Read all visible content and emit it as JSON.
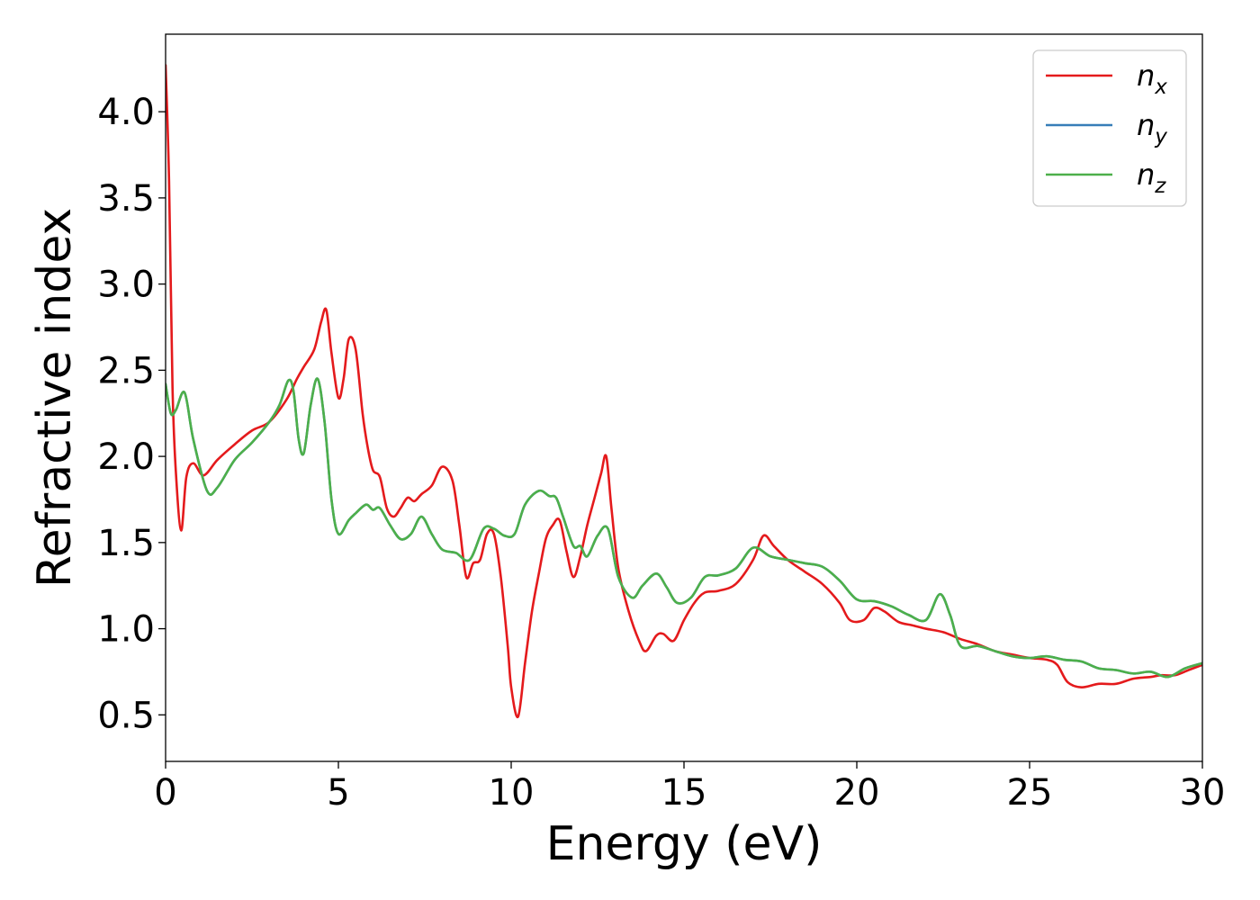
{
  "chart_data": {
    "type": "line",
    "title": "",
    "xlabel": "Energy (eV)",
    "ylabel": "Refractive index",
    "xlim": [
      0,
      30
    ],
    "ylim": [
      0.23,
      4.45
    ],
    "xticks": [
      0,
      5,
      10,
      15,
      20,
      25,
      30
    ],
    "xtick_labels": [
      "0",
      "5",
      "10",
      "15",
      "20",
      "25",
      "30"
    ],
    "yticks": [
      0.5,
      1.0,
      1.5,
      2.0,
      2.5,
      3.0,
      3.5,
      4.0
    ],
    "ytick_labels": [
      "0.5",
      "1.0",
      "1.5",
      "2.0",
      "2.5",
      "3.0",
      "3.5",
      "4.0"
    ],
    "grid": false,
    "legend_position": "top-right",
    "series": [
      {
        "name": "n",
        "subscript": "x",
        "color": "#e41a1c",
        "x": [
          0,
          0.1,
          0.2,
          0.3,
          0.45,
          0.6,
          0.8,
          1.1,
          1.5,
          2,
          2.5,
          3,
          3.5,
          3.8,
          4.0,
          4.3,
          4.5,
          4.65,
          4.8,
          5.0,
          5.15,
          5.3,
          5.5,
          5.7,
          5.85,
          6.0,
          6.2,
          6.4,
          6.6,
          6.8,
          7.0,
          7.2,
          7.4,
          7.7,
          8.0,
          8.3,
          8.5,
          8.7,
          8.9,
          9.1,
          9.3,
          9.5,
          9.7,
          9.9,
          10.0,
          10.2,
          10.4,
          10.6,
          10.8,
          11.0,
          11.2,
          11.4,
          11.6,
          11.8,
          12.0,
          12.2,
          12.4,
          12.6,
          12.75,
          12.9,
          13.1,
          13.4,
          13.7,
          13.9,
          14.2,
          14.4,
          14.7,
          15.0,
          15.3,
          15.6,
          16.0,
          16.5,
          17.0,
          17.3,
          17.6,
          18.0,
          18.5,
          19.0,
          19.5,
          19.8,
          20.2,
          20.5,
          20.8,
          21.2,
          21.6,
          22.0,
          22.5,
          23.0,
          23.5,
          24.0,
          24.5,
          25.0,
          25.5,
          25.8,
          26.1,
          26.5,
          27.0,
          27.5,
          28.0,
          28.5,
          28.8,
          29.2,
          29.6,
          30.0
        ],
        "y": [
          4.27,
          3.6,
          2.4,
          1.9,
          1.57,
          1.88,
          1.96,
          1.89,
          1.98,
          2.07,
          2.15,
          2.2,
          2.33,
          2.45,
          2.52,
          2.62,
          2.78,
          2.85,
          2.6,
          2.34,
          2.45,
          2.68,
          2.62,
          2.25,
          2.05,
          1.92,
          1.88,
          1.7,
          1.65,
          1.7,
          1.76,
          1.74,
          1.78,
          1.83,
          1.94,
          1.86,
          1.6,
          1.3,
          1.38,
          1.4,
          1.55,
          1.55,
          1.3,
          0.9,
          0.66,
          0.49,
          0.8,
          1.1,
          1.32,
          1.52,
          1.6,
          1.63,
          1.45,
          1.3,
          1.42,
          1.6,
          1.75,
          1.9,
          2.0,
          1.7,
          1.35,
          1.1,
          0.93,
          0.87,
          0.96,
          0.97,
          0.93,
          1.05,
          1.15,
          1.21,
          1.22,
          1.26,
          1.4,
          1.54,
          1.48,
          1.4,
          1.33,
          1.26,
          1.15,
          1.05,
          1.05,
          1.12,
          1.1,
          1.04,
          1.02,
          1.0,
          0.98,
          0.94,
          0.91,
          0.87,
          0.85,
          0.83,
          0.82,
          0.79,
          0.69,
          0.66,
          0.68,
          0.68,
          0.71,
          0.72,
          0.73,
          0.73,
          0.76,
          0.79
        ]
      },
      {
        "name": "n",
        "subscript": "y",
        "color": "#377eb8",
        "x": [
          0,
          0.15,
          0.3,
          0.55,
          0.8,
          1.2,
          1.5,
          2,
          2.5,
          3,
          3.3,
          3.55,
          3.7,
          3.85,
          4.0,
          4.2,
          4.4,
          4.6,
          4.8,
          5.0,
          5.3,
          5.5,
          5.8,
          6.0,
          6.2,
          6.5,
          6.8,
          7.1,
          7.4,
          7.7,
          8.0,
          8.4,
          8.8,
          9.2,
          9.5,
          9.8,
          10.1,
          10.4,
          10.8,
          11.1,
          11.3,
          11.5,
          11.8,
          12.0,
          12.2,
          12.5,
          12.8,
          13.1,
          13.5,
          13.8,
          14.2,
          14.5,
          14.8,
          15.2,
          15.6,
          16.0,
          16.5,
          17.0,
          17.5,
          18.0,
          18.5,
          19.0,
          19.5,
          20.0,
          20.5,
          21.0,
          21.5,
          22.0,
          22.4,
          22.7,
          23.0,
          23.5,
          24.0,
          24.5,
          25.0,
          25.5,
          26.0,
          26.5,
          27.0,
          27.5,
          28.0,
          28.5,
          29.0,
          29.5,
          30.0
        ],
        "y": [
          2.42,
          2.25,
          2.27,
          2.37,
          2.1,
          1.8,
          1.82,
          1.98,
          2.08,
          2.2,
          2.3,
          2.44,
          2.38,
          2.1,
          2.02,
          2.3,
          2.45,
          2.2,
          1.75,
          1.55,
          1.63,
          1.67,
          1.72,
          1.69,
          1.7,
          1.6,
          1.52,
          1.55,
          1.65,
          1.55,
          1.46,
          1.44,
          1.4,
          1.58,
          1.58,
          1.54,
          1.55,
          1.72,
          1.8,
          1.77,
          1.76,
          1.65,
          1.48,
          1.48,
          1.42,
          1.54,
          1.58,
          1.3,
          1.18,
          1.25,
          1.32,
          1.24,
          1.15,
          1.18,
          1.3,
          1.31,
          1.35,
          1.47,
          1.42,
          1.4,
          1.38,
          1.36,
          1.28,
          1.17,
          1.16,
          1.13,
          1.08,
          1.05,
          1.2,
          1.08,
          0.9,
          0.9,
          0.87,
          0.84,
          0.83,
          0.84,
          0.82,
          0.81,
          0.77,
          0.76,
          0.74,
          0.75,
          0.72,
          0.77,
          0.8
        ]
      },
      {
        "name": "n",
        "subscript": "z",
        "color": "#4daf4a",
        "x": [
          0,
          0.15,
          0.3,
          0.55,
          0.8,
          1.2,
          1.5,
          2,
          2.5,
          3,
          3.3,
          3.55,
          3.7,
          3.85,
          4.0,
          4.2,
          4.4,
          4.6,
          4.8,
          5.0,
          5.3,
          5.5,
          5.8,
          6.0,
          6.2,
          6.5,
          6.8,
          7.1,
          7.4,
          7.7,
          8.0,
          8.4,
          8.8,
          9.2,
          9.5,
          9.8,
          10.1,
          10.4,
          10.8,
          11.1,
          11.3,
          11.5,
          11.8,
          12.0,
          12.2,
          12.5,
          12.8,
          13.1,
          13.5,
          13.8,
          14.2,
          14.5,
          14.8,
          15.2,
          15.6,
          16.0,
          16.5,
          17.0,
          17.5,
          18.0,
          18.5,
          19.0,
          19.5,
          20.0,
          20.5,
          21.0,
          21.5,
          22.0,
          22.4,
          22.7,
          23.0,
          23.5,
          24.0,
          24.5,
          25.0,
          25.5,
          26.0,
          26.5,
          27.0,
          27.5,
          28.0,
          28.5,
          29.0,
          29.5,
          30.0
        ],
        "y": [
          2.42,
          2.25,
          2.27,
          2.37,
          2.1,
          1.8,
          1.82,
          1.98,
          2.08,
          2.2,
          2.3,
          2.44,
          2.38,
          2.1,
          2.02,
          2.3,
          2.45,
          2.2,
          1.75,
          1.55,
          1.63,
          1.67,
          1.72,
          1.69,
          1.7,
          1.6,
          1.52,
          1.55,
          1.65,
          1.55,
          1.46,
          1.44,
          1.4,
          1.58,
          1.58,
          1.54,
          1.55,
          1.72,
          1.8,
          1.77,
          1.76,
          1.65,
          1.48,
          1.48,
          1.42,
          1.54,
          1.58,
          1.3,
          1.18,
          1.25,
          1.32,
          1.24,
          1.15,
          1.18,
          1.3,
          1.31,
          1.35,
          1.47,
          1.42,
          1.4,
          1.38,
          1.36,
          1.28,
          1.17,
          1.16,
          1.13,
          1.08,
          1.05,
          1.2,
          1.08,
          0.9,
          0.9,
          0.87,
          0.84,
          0.83,
          0.84,
          0.82,
          0.81,
          0.77,
          0.76,
          0.74,
          0.75,
          0.72,
          0.77,
          0.8
        ]
      }
    ]
  }
}
